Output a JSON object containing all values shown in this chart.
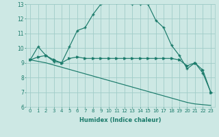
{
  "bg_color": "#cde8e4",
  "grid_color": "#a0ccc8",
  "line_color": "#1a7a6a",
  "xlabel": "Humidex (Indice chaleur)",
  "xlim": [
    -0.5,
    23.5
  ],
  "ylim": [
    6,
    13
  ],
  "yticks": [
    6,
    7,
    8,
    9,
    10,
    11,
    12,
    13
  ],
  "xticks": [
    0,
    1,
    2,
    3,
    4,
    5,
    6,
    7,
    8,
    9,
    10,
    11,
    12,
    13,
    14,
    15,
    16,
    17,
    18,
    19,
    20,
    21,
    22,
    23
  ],
  "line1_x": [
    0,
    1,
    2,
    3,
    4,
    5,
    6,
    7,
    8,
    9,
    10,
    11,
    12,
    13,
    14,
    15,
    16,
    17,
    18,
    19,
    20,
    21,
    22,
    23
  ],
  "line1_y": [
    9.2,
    10.1,
    9.5,
    9.1,
    9.0,
    10.1,
    11.2,
    11.4,
    12.3,
    13.0,
    13.1,
    13.1,
    13.1,
    13.0,
    13.0,
    13.0,
    11.9,
    11.4,
    10.2,
    9.5,
    8.6,
    9.0,
    8.3,
    7.0
  ],
  "line2_x": [
    0,
    1,
    2,
    3,
    4,
    5,
    6,
    7,
    8,
    9,
    10,
    11,
    12,
    13,
    14,
    15,
    16,
    17,
    18,
    19,
    20,
    21,
    22,
    23
  ],
  "line2_y": [
    9.2,
    9.4,
    9.5,
    9.2,
    9.0,
    9.3,
    9.4,
    9.3,
    9.3,
    9.3,
    9.3,
    9.3,
    9.3,
    9.3,
    9.3,
    9.3,
    9.3,
    9.3,
    9.3,
    9.2,
    8.8,
    9.0,
    8.5,
    7.0
  ],
  "line3_x": [
    0,
    1,
    2,
    3,
    4,
    5,
    6,
    7,
    8,
    9,
    10,
    11,
    12,
    13,
    14,
    15,
    16,
    17,
    18,
    19,
    20,
    21,
    22,
    23
  ],
  "line3_y": [
    9.2,
    9.1,
    9.0,
    8.85,
    8.7,
    8.55,
    8.4,
    8.25,
    8.1,
    7.95,
    7.8,
    7.65,
    7.5,
    7.35,
    7.2,
    7.05,
    6.9,
    6.75,
    6.6,
    6.45,
    6.3,
    6.2,
    6.15,
    6.1
  ]
}
